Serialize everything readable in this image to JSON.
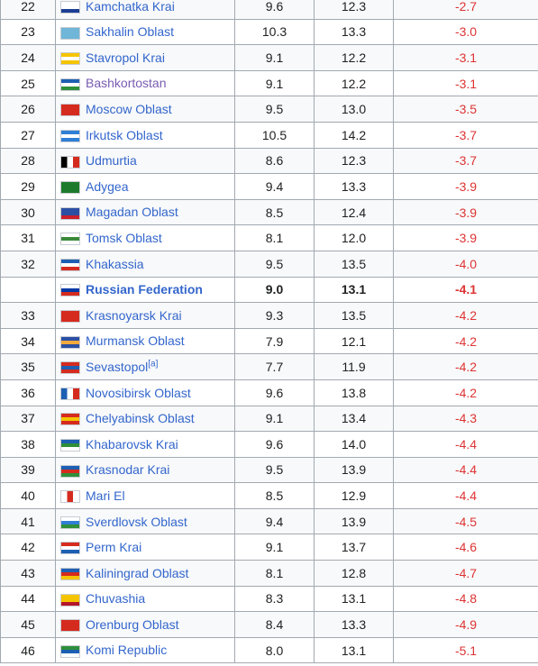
{
  "rows": [
    {
      "rank": "22",
      "name": "Kamchatka Krai",
      "v1": "9.6",
      "v2": "12.3",
      "diff": "-2.7",
      "flag": "kamchatka-flag",
      "colors": [
        "#ffffff",
        "#ffffff",
        "#1c3f94"
      ]
    },
    {
      "rank": "23",
      "name": "Sakhalin Oblast",
      "v1": "10.3",
      "v2": "13.3",
      "diff": "-3.0",
      "flag": "sakhalin-flag",
      "colors": [
        "#6fb6d8",
        "#6fb6d8",
        "#6fb6d8"
      ]
    },
    {
      "rank": "24",
      "name": "Stavropol Krai",
      "v1": "9.1",
      "v2": "12.2",
      "diff": "-3.1",
      "flag": "stavropol-flag",
      "colors": [
        "#f5c400",
        "#ffffff",
        "#f5c400"
      ]
    },
    {
      "rank": "25",
      "name": "Bashkortostan",
      "v1": "9.1",
      "v2": "12.2",
      "diff": "-3.1",
      "flag": "bashkortostan-flag",
      "visited": true,
      "colors": [
        "#1d5fb3",
        "#ffffff",
        "#2f8f3a"
      ]
    },
    {
      "rank": "26",
      "name": "Moscow Oblast",
      "v1": "9.5",
      "v2": "13.0",
      "diff": "-3.5",
      "flag": "moscow-oblast-flag",
      "colors": [
        "#d52b1e",
        "#d52b1e",
        "#d52b1e"
      ]
    },
    {
      "rank": "27",
      "name": "Irkutsk Oblast",
      "v1": "10.5",
      "v2": "14.2",
      "diff": "-3.7",
      "flag": "irkutsk-flag",
      "colors": [
        "#2f7fd6",
        "#ffffff",
        "#2f7fd6"
      ]
    },
    {
      "rank": "28",
      "name": "Udmurtia",
      "v1": "8.6",
      "v2": "12.3",
      "diff": "-3.7",
      "flag": "udmurtia-flag",
      "colors": [
        "#000000",
        "#ffffff",
        "#d52b1e"
      ],
      "vertical": true
    },
    {
      "rank": "29",
      "name": "Adygea",
      "v1": "9.4",
      "v2": "13.3",
      "diff": "-3.9",
      "flag": "adygea-flag",
      "colors": [
        "#1c7a2c",
        "#1c7a2c",
        "#1c7a2c"
      ]
    },
    {
      "rank": "30",
      "name": "Magadan Oblast",
      "v1": "8.5",
      "v2": "12.4",
      "diff": "-3.9",
      "flag": "magadan-flag",
      "colors": [
        "#2b4fa3",
        "#2b4fa3",
        "#c8202a"
      ]
    },
    {
      "rank": "31",
      "name": "Tomsk Oblast",
      "v1": "8.1",
      "v2": "12.0",
      "diff": "-3.9",
      "flag": "tomsk-flag",
      "colors": [
        "#ffffff",
        "#3a8a3a",
        "#ffffff"
      ]
    },
    {
      "rank": "32",
      "name": "Khakassia",
      "v1": "9.5",
      "v2": "13.5",
      "diff": "-4.0",
      "flag": "khakassia-flag",
      "colors": [
        "#1d5fb3",
        "#ffffff",
        "#d52b1e"
      ]
    },
    {
      "rank": "",
      "name": "Russian Federation",
      "v1": "9.0",
      "v2": "13.1",
      "diff": "-4.1",
      "flag": "russia-flag",
      "federation": true,
      "colors": [
        "#ffffff",
        "#0039a6",
        "#d52b1e"
      ]
    },
    {
      "rank": "33",
      "name": "Krasnoyarsk Krai",
      "v1": "9.3",
      "v2": "13.5",
      "diff": "-4.2",
      "flag": "krasnoyarsk-flag",
      "colors": [
        "#d52b1e",
        "#d52b1e",
        "#d52b1e"
      ]
    },
    {
      "rank": "34",
      "name": "Murmansk Oblast",
      "v1": "7.9",
      "v2": "12.1",
      "diff": "-4.2",
      "flag": "murmansk-flag",
      "colors": [
        "#2b4fa3",
        "#f3a93c",
        "#2b4fa3"
      ]
    },
    {
      "rank": "35",
      "name": "Sevastopol",
      "sup": "[a]",
      "v1": "7.7",
      "v2": "11.9",
      "diff": "-4.2",
      "flag": "sevastopol-flag",
      "colors": [
        "#d52b1e",
        "#1d5fb3",
        "#d52b1e"
      ]
    },
    {
      "rank": "36",
      "name": "Novosibirsk Oblast",
      "v1": "9.6",
      "v2": "13.8",
      "diff": "-4.2",
      "flag": "novosibirsk-flag",
      "colors": [
        "#1d5fb3",
        "#ffffff",
        "#d52b1e"
      ],
      "vertical": true
    },
    {
      "rank": "37",
      "name": "Chelyabinsk Oblast",
      "v1": "9.1",
      "v2": "13.4",
      "diff": "-4.3",
      "flag": "chelyabinsk-flag",
      "colors": [
        "#d52b1e",
        "#f5c400",
        "#d52b1e"
      ]
    },
    {
      "rank": "38",
      "name": "Khabarovsk Krai",
      "v1": "9.6",
      "v2": "14.0",
      "diff": "-4.4",
      "flag": "khabarovsk-flag",
      "colors": [
        "#1d5fb3",
        "#2f8f3a",
        "#ffffff"
      ]
    },
    {
      "rank": "39",
      "name": "Krasnodar Krai",
      "v1": "9.5",
      "v2": "13.9",
      "diff": "-4.4",
      "flag": "krasnodar-flag",
      "colors": [
        "#1d5fb3",
        "#d52b1e",
        "#2f8f3a"
      ]
    },
    {
      "rank": "40",
      "name": "Mari El",
      "v1": "8.5",
      "v2": "12.9",
      "diff": "-4.4",
      "flag": "mari-el-flag",
      "colors": [
        "#ffffff",
        "#d52b1e",
        "#ffffff"
      ],
      "vertical": true
    },
    {
      "rank": "41",
      "name": "Sverdlovsk Oblast",
      "v1": "9.4",
      "v2": "13.9",
      "diff": "-4.5",
      "flag": "sverdlovsk-flag",
      "colors": [
        "#ffffff",
        "#2f7fd6",
        "#2f8f3a"
      ]
    },
    {
      "rank": "42",
      "name": "Perm Krai",
      "v1": "9.1",
      "v2": "13.7",
      "diff": "-4.6",
      "flag": "perm-flag",
      "colors": [
        "#d52b1e",
        "#ffffff",
        "#1d5fb3"
      ]
    },
    {
      "rank": "43",
      "name": "Kaliningrad Oblast",
      "v1": "8.1",
      "v2": "12.8",
      "diff": "-4.7",
      "flag": "kaliningrad-flag",
      "colors": [
        "#1d5fb3",
        "#d52b1e",
        "#f5c400"
      ]
    },
    {
      "rank": "44",
      "name": "Chuvashia",
      "v1": "8.3",
      "v2": "13.1",
      "diff": "-4.8",
      "flag": "chuvashia-flag",
      "colors": [
        "#f5c400",
        "#f5c400",
        "#b5172b"
      ]
    },
    {
      "rank": "45",
      "name": "Orenburg Oblast",
      "v1": "8.4",
      "v2": "13.3",
      "diff": "-4.9",
      "flag": "orenburg-flag",
      "colors": [
        "#d52b1e",
        "#d52b1e",
        "#d52b1e"
      ]
    },
    {
      "rank": "46",
      "name": "Komi Republic",
      "v1": "8.0",
      "v2": "13.1",
      "diff": "-5.1",
      "flag": "komi-flag",
      "colors": [
        "#2f8f3a",
        "#1d5fb3",
        "#ffffff"
      ]
    }
  ]
}
